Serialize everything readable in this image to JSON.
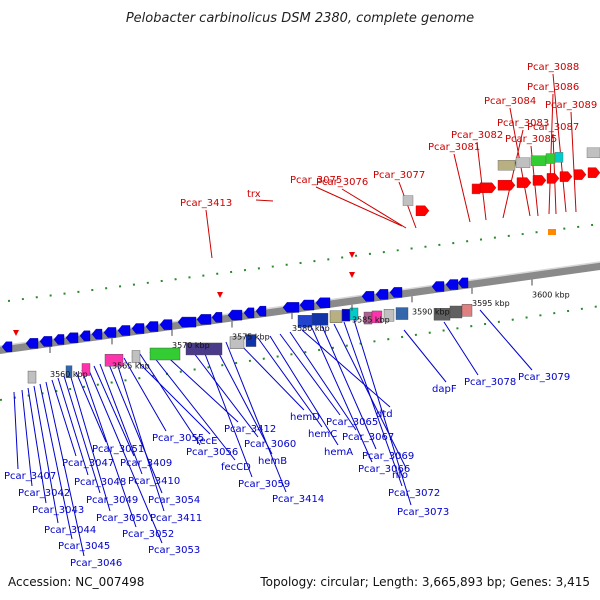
{
  "header": {
    "title": "Pelobacter carbinolicus DSM 2380, complete genome"
  },
  "footer": {
    "accession": "Accession: NC_007498",
    "summary": "Topology: circular; Length: 3,665,893 bp; Genes: 3,415"
  },
  "colors": {
    "forward_label": "#cc0000",
    "reverse_label": "#0000cc",
    "forward_gene": "#ff0000",
    "reverse_gene": "#0000ee",
    "backbone": "#888888"
  },
  "scale": {
    "unit": "kbp",
    "ticks": [
      "3560 kbp",
      "3565 kbp",
      "3570 kbp",
      "3575 kbp",
      "3580 kbp",
      "3585 kbp",
      "3590 kbp",
      "3595 kbp",
      "3600 kbp"
    ]
  },
  "forward_genes": [
    "Pcar_3413",
    "trx",
    "Pcar_3075",
    "Pcar_3076",
    "Pcar_3077",
    "Pcar_3081",
    "Pcar_3082",
    "Pcar_3083",
    "Pcar_3084",
    "Pcar_3085",
    "Pcar_3086",
    "Pcar_3087",
    "Pcar_3088",
    "Pcar_3089"
  ],
  "reverse_genes": [
    "Pcar_3407",
    "Pcar_3042",
    "Pcar_3043",
    "Pcar_3044",
    "Pcar_3045",
    "Pcar_3046",
    "Pcar_3047",
    "Pcar_3048",
    "Pcar_3049",
    "Pcar_3050",
    "Pcar_3051",
    "Pcar_3052",
    "Pcar_3053",
    "Pcar_3409",
    "Pcar_3410",
    "Pcar_3054",
    "Pcar_3411",
    "Pcar_3055",
    "fecE",
    "Pcar_3056",
    "fecCD",
    "Pcar_3412",
    "Pcar_3060",
    "Pcar_3059",
    "hemB",
    "Pcar_3414",
    "hemD",
    "hemC",
    "hemA",
    "Pcar_3065",
    "Pcar_3067",
    "dtd",
    "Pcar_3066",
    "Pcar_3069",
    "nfo",
    "Pcar_3072",
    "Pcar_3073",
    "dapF",
    "Pcar_3078",
    "Pcar_3079"
  ]
}
